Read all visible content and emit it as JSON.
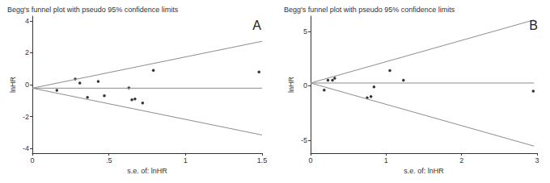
{
  "chart_data": [
    {
      "type": "scatter",
      "title": "Begg's funnel plot with pseudo 95% confidence limits",
      "annotations": [
        "A"
      ],
      "x_label": "s.e. of: lnHR",
      "y_label": "lnHR",
      "xlim": [
        0,
        1.5
      ],
      "ylim": [
        -4.3,
        4.3
      ],
      "xticks": [
        0,
        {
          "value": 0.5,
          "label": ".5"
        },
        1,
        1.5
      ],
      "yticks": [
        -4,
        -2,
        0,
        2,
        4
      ],
      "grid": false,
      "series": [
        {
          "type": "scatter",
          "marker": "circle",
          "color": "#000000",
          "x": [
            0.16,
            0.28,
            0.31,
            0.36,
            0.43,
            0.47,
            0.63,
            0.65,
            0.67,
            0.72,
            0.79,
            1.48
          ],
          "values": [
            -0.35,
            0.35,
            0.1,
            -0.8,
            0.2,
            -0.7,
            -0.2,
            -0.95,
            -0.9,
            -1.15,
            0.9,
            0.8
          ]
        },
        {
          "type": "line",
          "line_style": "solid",
          "color": "#8c8c8c",
          "x": [
            0,
            1.5
          ],
          "values": [
            -0.22,
            -0.22
          ]
        },
        {
          "type": "line",
          "line_style": "solid",
          "color": "#8c8c8c",
          "x": [
            0,
            1.5
          ],
          "values": [
            -0.22,
            2.72
          ]
        },
        {
          "type": "line",
          "line_style": "solid",
          "color": "#8c8c8c",
          "x": [
            0,
            1.5
          ],
          "values": [
            -0.22,
            -3.16
          ]
        }
      ]
    },
    {
      "type": "scatter",
      "title": "Begg's funnel plot with pseudo 95% confidence limits",
      "annotations": [
        "B"
      ],
      "x_label": "s.e. of: lnHR",
      "y_label": "lnHR",
      "xlim": [
        0,
        3
      ],
      "ylim": [
        -6.2,
        6.4
      ],
      "xticks": [
        0,
        1,
        2,
        3
      ],
      "yticks": [
        -5,
        0,
        5
      ],
      "grid": false,
      "series": [
        {
          "type": "scatter",
          "marker": "circle",
          "color": "#000000",
          "x": [
            0.18,
            0.23,
            0.29,
            0.32,
            0.75,
            0.8,
            0.84,
            1.05,
            1.23,
            2.95
          ],
          "values": [
            -0.4,
            0.5,
            0.5,
            0.7,
            -1.1,
            -1.0,
            -0.1,
            1.4,
            0.5,
            -0.5
          ]
        },
        {
          "type": "line",
          "line_style": "solid",
          "color": "#8c8c8c",
          "x": [
            0,
            2.96
          ],
          "values": [
            0.25,
            0.25
          ]
        },
        {
          "type": "line",
          "line_style": "solid",
          "color": "#8c8c8c",
          "x": [
            0,
            2.96
          ],
          "values": [
            0.25,
            6.05
          ]
        },
        {
          "type": "line",
          "line_style": "solid",
          "color": "#8c8c8c",
          "x": [
            0,
            2.96
          ],
          "values": [
            0.25,
            -5.55
          ]
        }
      ]
    }
  ]
}
